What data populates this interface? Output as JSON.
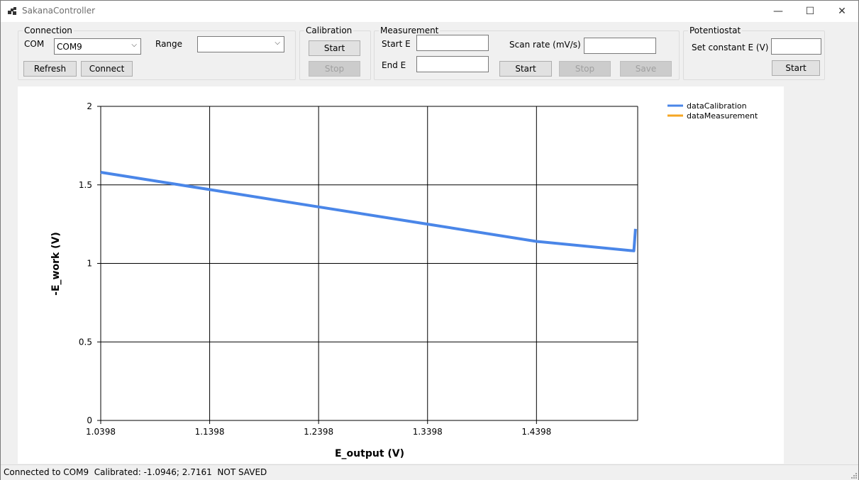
{
  "window": {
    "title": "SakanaController",
    "icon": "app-icon",
    "minimize_glyph": "—",
    "maximize_glyph": "☐",
    "close_glyph": "✕"
  },
  "connection": {
    "group_label": "Connection",
    "com_label": "COM",
    "com_value": "COM9",
    "range_label": "Range",
    "range_value": "",
    "refresh_label": "Refresh",
    "connect_label": "Connect"
  },
  "calibration": {
    "group_label": "Calibration",
    "start_label": "Start",
    "stop_label": "Stop"
  },
  "measurement": {
    "group_label": "Measurement",
    "start_e_label": "Start E",
    "start_e_value": "",
    "end_e_label": "End E",
    "end_e_value": "",
    "scan_rate_label": "Scan rate (mV/s)",
    "scan_rate_value": "",
    "start_label": "Start",
    "stop_label": "Stop",
    "save_label": "Save"
  },
  "potentiostat": {
    "group_label": "Potentiostat",
    "set_e_label": "Set constant E (V)",
    "set_e_value": "",
    "start_label": "Start"
  },
  "status": {
    "text": "Connected to COM9  Calibrated: -1.0946; 2.7161  NOT SAVED"
  },
  "chart_data": {
    "type": "line",
    "title": "",
    "xlabel": "E_output (V)",
    "ylabel": "-E_work (V)",
    "xlim": [
      1.0398,
      1.5327
    ],
    "ylim": [
      0,
      2
    ],
    "xticks": [
      "1.0398",
      "1.1398",
      "1.2398",
      "1.3398",
      "1.4398"
    ],
    "yticks": [
      "0",
      "0.5",
      "1",
      "1.5",
      "2"
    ],
    "grid": true,
    "legend_position": "top-right",
    "series": [
      {
        "name": "dataCalibration",
        "color": "#4a86e8",
        "points": [
          [
            1.0398,
            1.58
          ],
          [
            1.1398,
            1.47
          ],
          [
            1.2398,
            1.36
          ],
          [
            1.3398,
            1.25
          ],
          [
            1.4398,
            1.14
          ],
          [
            1.5292,
            1.08
          ],
          [
            1.5307,
            1.22
          ]
        ]
      },
      {
        "name": "dataMeasurement",
        "color": "#f5a623",
        "points": []
      }
    ]
  }
}
